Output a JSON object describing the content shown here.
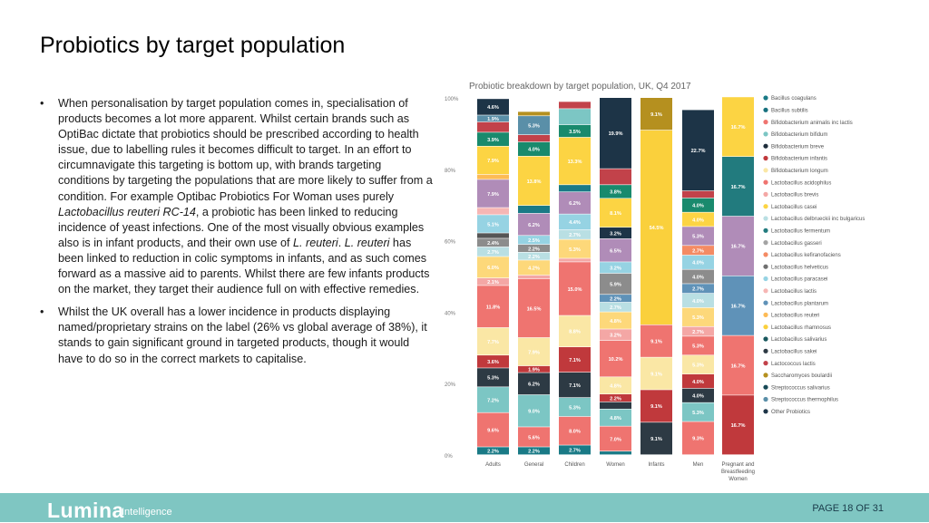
{
  "slide": {
    "title": "Probiotics by target population",
    "bullet1_parts": [
      "When personalisation by target population comes in, specialisation of products becomes a lot more apparent. Whilst certain brands such as OptiBac dictate that probiotics should be prescribed according to health issue, due to labelling rules it becomes difficult to target. In an effort to circumnavigate this targeting is bottom up, with brands targeting conditions by targeting the populations that are more likely to suffer from a condition. For example Optibac Probiotics For Woman uses purely ",
      "Lactobacillus reuteri RC-14",
      ", a probiotic has been linked to reducing incidence of yeast infections. One of the most visually obvious examples also is in infant products, and their own use of ",
      "L. reuteri",
      ". ",
      "L. reuteri",
      " has been linked to reduction in colic symptoms in infants, and as such comes forward as a massive aid to parents. Whilst there are few infants products on the market, they target their audience full on with effective remedies."
    ],
    "bullet2": "Whilst the UK overall has a lower incidence in products displaying named/proprietary strains on the label (26% vs global average of 38%), it stands to gain significant ground in targeted products, though it would have to do so in the correct markets to capitalise.",
    "bullet_char": "•",
    "footer": {
      "logo_main": "Lumina",
      "logo_sub": "Intelligence",
      "page": "PAGE 18 OF 31",
      "color": "#7fc6c2"
    }
  },
  "chart_data": {
    "type": "bar",
    "stacked": true,
    "title": "Probiotic breakdown by target population, UK, Q4 2017",
    "categories": [
      "Adults",
      "General",
      "Children",
      "Women",
      "Infants",
      "Men",
      "Pregnant and Breastfeeding Women"
    ],
    "ylim": [
      0,
      100
    ],
    "yticks": [
      "0%",
      "20%",
      "40%",
      "60%",
      "80%",
      "100%"
    ],
    "legend_position": "right",
    "series": [
      {
        "name": "Bacillus coagulans",
        "color": "#1a7a86",
        "values": [
          0,
          0,
          0,
          0,
          0,
          0,
          0
        ]
      },
      {
        "name": "Bacillus subtilis",
        "color": "#17707e",
        "values": [
          0,
          0,
          0,
          0,
          0,
          0,
          0
        ]
      },
      {
        "name": "Bifidobacterium animalis inc lactis",
        "color": "#ef7470",
        "values": [
          0,
          0,
          0,
          0,
          0,
          0,
          0
        ]
      },
      {
        "name": "Bifidobacterium bifidum",
        "color": "#7cc6c4",
        "values": [
          0,
          0,
          0,
          0,
          0,
          0,
          0
        ]
      },
      {
        "name": "Bifidobacterium breve",
        "color": "#1e2d3b",
        "values": [
          0,
          0,
          0,
          0,
          0,
          0,
          0
        ]
      },
      {
        "name": "Bifidobacterium infantis",
        "color": "#c0393c",
        "values": [
          0,
          0,
          0,
          0,
          0,
          0,
          0
        ]
      },
      {
        "name": "Bifidobacterium longum",
        "color": "#fae7a5",
        "values": [
          0,
          0,
          0,
          0,
          0,
          0,
          0
        ]
      },
      {
        "name": "Lactobacillus acidophilus",
        "color": "#ef7470",
        "values": [
          0,
          0,
          0,
          0,
          0,
          0,
          0
        ]
      },
      {
        "name": "Lactobacillus brevis",
        "color": "#f4a7a5",
        "values": [
          0,
          0,
          0,
          0,
          0,
          0,
          0
        ]
      },
      {
        "name": "Lactobacillus casei",
        "color": "#fcd443",
        "values": [
          0,
          0,
          0,
          0,
          0,
          0,
          0
        ]
      },
      {
        "name": "Lactobacillus delbrueckii inc bulgaricus",
        "color": "#b9dfe3",
        "values": [
          0,
          0,
          0,
          0,
          0,
          0,
          0
        ]
      },
      {
        "name": "Lactobacillus fermentum",
        "color": "#227b7e",
        "values": [
          0,
          0,
          0,
          0,
          0,
          0,
          0
        ]
      },
      {
        "name": "Lactobacillus gasseri",
        "color": "#a3a3a3",
        "values": [
          0,
          0,
          0,
          0,
          0,
          0,
          0
        ]
      },
      {
        "name": "Lactobacillus kefiranofaciens",
        "color": "#f48b64",
        "values": [
          0,
          0,
          0,
          0,
          0,
          0,
          0
        ]
      },
      {
        "name": "Lactobacillus helveticus",
        "color": "#707070",
        "values": [
          0,
          0,
          0,
          0,
          0,
          0,
          0
        ]
      },
      {
        "name": "Lactobacillus paracasei",
        "color": "#96d3e3",
        "values": [
          0,
          0,
          0,
          0,
          0,
          0,
          0
        ]
      },
      {
        "name": "Lactobacillus lactis",
        "color": "#f6b6b4",
        "values": [
          0,
          0,
          0,
          0,
          0,
          0,
          0
        ]
      },
      {
        "name": "Lactobacillus plantarum",
        "color": "#5f92b8",
        "values": [
          0,
          0,
          0,
          0,
          0,
          0,
          0
        ]
      },
      {
        "name": "Lactobacillus reuteri",
        "color": "#fdbb56",
        "values": [
          0,
          0,
          0,
          0,
          0,
          0,
          0
        ]
      },
      {
        "name": "Lactobacillus rhamnosus",
        "color": "#fad03c",
        "values": [
          0,
          0,
          0,
          0,
          0,
          0,
          0
        ]
      },
      {
        "name": "Lactobacillus salivarius",
        "color": "#19585e",
        "values": [
          0,
          0,
          0,
          0,
          0,
          0,
          0
        ]
      },
      {
        "name": "Lactobacillus sakei",
        "color": "#2d3a44",
        "values": [
          0,
          0,
          0,
          0,
          0,
          0,
          0
        ]
      },
      {
        "name": "Lactococcus lactis",
        "color": "#c2424a",
        "values": [
          0,
          0,
          0,
          0,
          0,
          0,
          0
        ]
      },
      {
        "name": "Saccharomyces boulardii",
        "color": "#b5901f",
        "values": [
          0,
          0,
          0,
          0,
          0,
          0,
          0
        ]
      },
      {
        "name": "Streptococcus salivarius",
        "color": "#174956",
        "values": [
          0,
          0,
          0,
          0,
          0,
          0,
          0
        ]
      },
      {
        "name": "Streptococcus thermophilus",
        "color": "#5a8fa8",
        "values": [
          0,
          0,
          0,
          0,
          0,
          0,
          0
        ]
      },
      {
        "name": "Other Probiotics",
        "color": "#1d3447",
        "values": [
          0,
          0,
          0,
          0,
          0,
          0,
          0
        ]
      }
    ],
    "stacks": [
      [
        {
          "v": 2.2,
          "c": "#1a7a86",
          "label": "2.2%"
        },
        {
          "v": 9.6,
          "c": "#ef7470",
          "label": "9.6%"
        },
        {
          "v": 7.2,
          "c": "#7cc6c4",
          "label": "7.2%"
        },
        {
          "v": 5.3,
          "c": "#2d3a44",
          "label": "5.3%"
        },
        {
          "v": 3.6,
          "c": "#c0393c",
          "label": "3.6%"
        },
        {
          "v": 7.7,
          "c": "#fae7a5",
          "label": "7.7%"
        },
        {
          "v": 11.8,
          "c": "#ef7470",
          "label": "11.8%"
        },
        {
          "v": 2.1,
          "c": "#f4a7a5",
          "label": "2.1%"
        },
        {
          "v": 6.0,
          "c": "#fdd87a",
          "label": "6.0%"
        },
        {
          "v": 2.7,
          "c": "#b9dfe3",
          "label": "2.7%"
        },
        {
          "v": 2.4,
          "c": "#8c8c8c",
          "label": "2.4%"
        },
        {
          "v": 1.5,
          "c": "#555555",
          "label": ""
        },
        {
          "v": 5.1,
          "c": "#96d3e3",
          "label": "5.1%"
        },
        {
          "v": 2.0,
          "c": "#f6b6b4",
          "label": ""
        },
        {
          "v": 7.9,
          "c": "#b08cb8",
          "label": "7.9%"
        },
        {
          "v": 1.4,
          "c": "#fdbb56",
          "label": ""
        },
        {
          "v": 7.9,
          "c": "#fcd443",
          "label": "7.9%"
        },
        {
          "v": 3.9,
          "c": "#198a6d",
          "label": "3.9%"
        },
        {
          "v": 2.9,
          "c": "#c2424a",
          "label": ""
        },
        {
          "v": 1.9,
          "c": "#5a8fa8",
          "label": "1.9%"
        },
        {
          "v": 4.6,
          "c": "#1d3447",
          "label": "4.6%"
        }
      ],
      [
        {
          "v": 2.2,
          "c": "#1a7a86",
          "label": "2.2%"
        },
        {
          "v": 5.6,
          "c": "#ef7470",
          "label": "5.6%"
        },
        {
          "v": 9.0,
          "c": "#7cc6c4",
          "label": "9.0%"
        },
        {
          "v": 6.2,
          "c": "#2d3a44",
          "label": "6.2%"
        },
        {
          "v": 1.9,
          "c": "#c0393c",
          "label": "1.9%"
        },
        {
          "v": 7.9,
          "c": "#fae7a5",
          "label": "7.9%"
        },
        {
          "v": 16.5,
          "c": "#ef7470",
          "label": "16.5%"
        },
        {
          "v": 1.0,
          "c": "#f4a7a5",
          "label": ""
        },
        {
          "v": 4.2,
          "c": "#fdd87a",
          "label": "4.2%"
        },
        {
          "v": 2.2,
          "c": "#b9dfe3",
          "label": "2.2%"
        },
        {
          "v": 2.2,
          "c": "#8c8c8c",
          "label": "2.2%"
        },
        {
          "v": 2.5,
          "c": "#96d3e3",
          "label": "2.5%"
        },
        {
          "v": 6.2,
          "c": "#b08cb8",
          "label": "6.2%"
        },
        {
          "v": 2.2,
          "c": "#1a7a86",
          "label": ""
        },
        {
          "v": 13.8,
          "c": "#fcd443",
          "label": "13.8%"
        },
        {
          "v": 4.0,
          "c": "#198a6d",
          "label": "4.0%"
        },
        {
          "v": 2.0,
          "c": "#c2424a",
          "label": ""
        },
        {
          "v": 5.3,
          "c": "#5a8fa8",
          "label": "5.3%"
        },
        {
          "v": 1.2,
          "c": "#b5901f",
          "label": ""
        }
      ],
      [
        {
          "v": 2.7,
          "c": "#1a7a86",
          "label": "2.7%"
        },
        {
          "v": 8.0,
          "c": "#ef7470",
          "label": "8.0%"
        },
        {
          "v": 5.3,
          "c": "#7cc6c4",
          "label": "5.3%"
        },
        {
          "v": 7.1,
          "c": "#2d3a44",
          "label": "7.1%"
        },
        {
          "v": 7.1,
          "c": "#c0393c",
          "label": "7.1%"
        },
        {
          "v": 8.8,
          "c": "#fae7a5",
          "label": "8.8%"
        },
        {
          "v": 15.0,
          "c": "#ef7470",
          "label": "15.0%"
        },
        {
          "v": 1.0,
          "c": "#f4a7a5",
          "label": ""
        },
        {
          "v": 5.3,
          "c": "#fdd87a",
          "label": "5.3%"
        },
        {
          "v": 2.7,
          "c": "#b9dfe3",
          "label": "2.7%"
        },
        {
          "v": 4.4,
          "c": "#96d3e3",
          "label": "4.4%"
        },
        {
          "v": 6.2,
          "c": "#b08cb8",
          "label": "6.2%"
        },
        {
          "v": 2.0,
          "c": "#1a7a86",
          "label": ""
        },
        {
          "v": 13.3,
          "c": "#fcd443",
          "label": "13.3%"
        },
        {
          "v": 3.5,
          "c": "#198a6d",
          "label": "3.5%"
        },
        {
          "v": 4.5,
          "c": "#7cc6c4",
          "label": ""
        },
        {
          "v": 2.0,
          "c": "#c2424a",
          "label": ""
        }
      ],
      [
        {
          "v": 1.0,
          "c": "#1a7a86",
          "label": ""
        },
        {
          "v": 7.0,
          "c": "#ef7470",
          "label": "7.0%"
        },
        {
          "v": 4.8,
          "c": "#7cc6c4",
          "label": "4.8%"
        },
        {
          "v": 2.0,
          "c": "#2d3a44",
          "label": ""
        },
        {
          "v": 2.2,
          "c": "#c0393c",
          "label": "2.2%"
        },
        {
          "v": 4.8,
          "c": "#fae7a5",
          "label": "4.8%"
        },
        {
          "v": 10.2,
          "c": "#ef7470",
          "label": "10.2%"
        },
        {
          "v": 3.2,
          "c": "#f4a7a5",
          "label": "3.2%"
        },
        {
          "v": 4.8,
          "c": "#fdd87a",
          "label": "4.8%"
        },
        {
          "v": 2.7,
          "c": "#b9dfe3",
          "label": "2.7%"
        },
        {
          "v": 2.2,
          "c": "#5f92b8",
          "label": "2.2%"
        },
        {
          "v": 5.9,
          "c": "#8c8c8c",
          "label": "5.9%"
        },
        {
          "v": 3.2,
          "c": "#96d3e3",
          "label": "3.2%"
        },
        {
          "v": 6.5,
          "c": "#b08cb8",
          "label": "6.5%"
        },
        {
          "v": 3.2,
          "c": "#1d3447",
          "label": "3.2%"
        },
        {
          "v": 8.1,
          "c": "#fcd443",
          "label": "8.1%"
        },
        {
          "v": 3.8,
          "c": "#198a6d",
          "label": "3.8%"
        },
        {
          "v": 4.5,
          "c": "#c2424a",
          "label": ""
        },
        {
          "v": 19.9,
          "c": "#1d3447",
          "label": "19.9%"
        }
      ],
      [
        {
          "v": 9.1,
          "c": "#2d3a44",
          "label": "9.1%"
        },
        {
          "v": 9.1,
          "c": "#c0393c",
          "label": "9.1%"
        },
        {
          "v": 9.1,
          "c": "#fae7a5",
          "label": "9.1%"
        },
        {
          "v": 9.1,
          "c": "#ef7470",
          "label": "9.1%"
        },
        {
          "v": 54.5,
          "c": "#fad03c",
          "label": "54.5%"
        },
        {
          "v": 9.1,
          "c": "#b5901f",
          "label": "9.1%"
        }
      ],
      [
        {
          "v": 9.3,
          "c": "#ef7470",
          "label": "9.3%"
        },
        {
          "v": 5.3,
          "c": "#7cc6c4",
          "label": "5.3%"
        },
        {
          "v": 4.0,
          "c": "#2d3a44",
          "label": "4.0%"
        },
        {
          "v": 4.0,
          "c": "#c0393c",
          "label": "4.0%"
        },
        {
          "v": 5.3,
          "c": "#fae7a5",
          "label": "5.3%"
        },
        {
          "v": 5.3,
          "c": "#ef7470",
          "label": "5.3%"
        },
        {
          "v": 2.7,
          "c": "#f4a7a5",
          "label": "2.7%"
        },
        {
          "v": 5.3,
          "c": "#fdd87a",
          "label": "5.3%"
        },
        {
          "v": 4.0,
          "c": "#b9dfe3",
          "label": "4.0%"
        },
        {
          "v": 2.7,
          "c": "#5f92b8",
          "label": "2.7%"
        },
        {
          "v": 4.0,
          "c": "#8c8c8c",
          "label": "4.0%"
        },
        {
          "v": 4.0,
          "c": "#96d3e3",
          "label": "4.0%"
        },
        {
          "v": 2.7,
          "c": "#f48b64",
          "label": "2.7%"
        },
        {
          "v": 5.3,
          "c": "#b08cb8",
          "label": "5.3%"
        },
        {
          "v": 4.0,
          "c": "#fcd443",
          "label": "4.0%"
        },
        {
          "v": 4.0,
          "c": "#198a6d",
          "label": "4.0%"
        },
        {
          "v": 2.0,
          "c": "#c2424a",
          "label": ""
        },
        {
          "v": 22.7,
          "c": "#1d3447",
          "label": "22.7%"
        }
      ],
      [
        {
          "v": 16.7,
          "c": "#c0393c",
          "label": "16.7%"
        },
        {
          "v": 16.7,
          "c": "#ef7470",
          "label": "16.7%"
        },
        {
          "v": 16.7,
          "c": "#5f92b8",
          "label": "16.7%"
        },
        {
          "v": 16.7,
          "c": "#b08cb8",
          "label": "16.7%"
        },
        {
          "v": 16.7,
          "c": "#227b7e",
          "label": "16.7%"
        },
        {
          "v": 16.7,
          "c": "#fcd443",
          "label": "16.7%"
        }
      ]
    ]
  }
}
